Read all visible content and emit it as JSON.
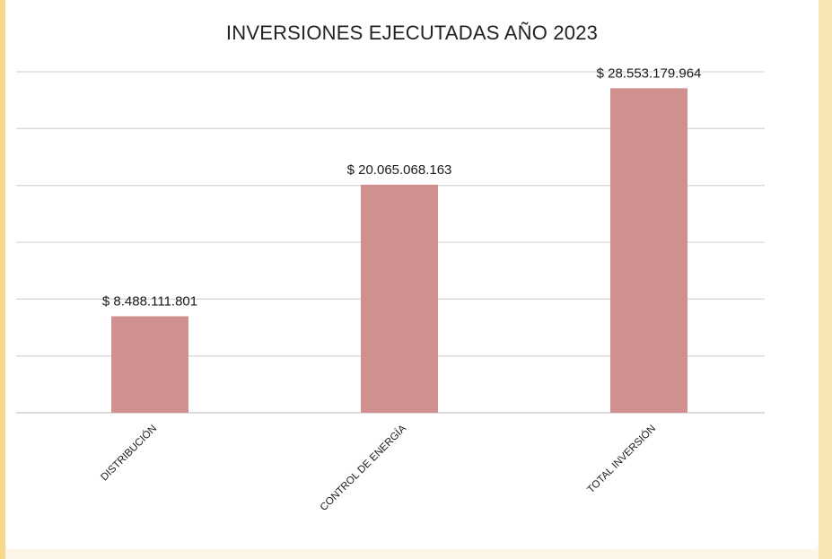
{
  "chart_data": {
    "type": "bar",
    "title": "INVERSIONES EJECUTADAS AÑO 2023",
    "categories": [
      "DISTRIBUCIÓN",
      "CONTROL DE ENERGÍA",
      "TOTAL INVERSIÓN"
    ],
    "values": [
      8488111801,
      20065068163,
      28553179964
    ],
    "data_labels": [
      "$ 8.488.111.801",
      "$ 20.065.068.163",
      "$ 28.553.179.964"
    ],
    "ylim": [
      0,
      30000000000
    ],
    "grid": true,
    "legend": "none",
    "colors": {
      "bar": "#d09090",
      "grid": "#d9d9d9"
    }
  }
}
